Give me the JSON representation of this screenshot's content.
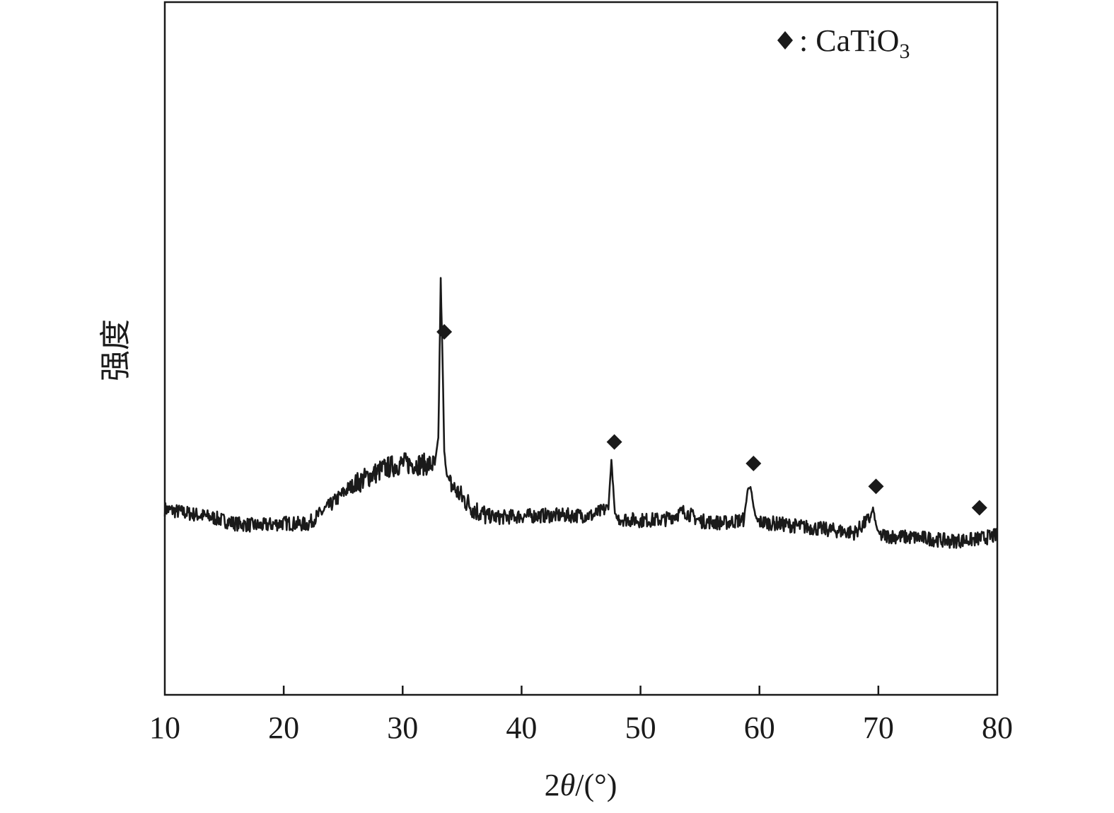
{
  "chart_data": {
    "type": "line",
    "xlabel_prefix": "2",
    "xlabel_symbol": "θ",
    "xlabel_suffix": "/(°)",
    "ylabel": "强度",
    "xlim": [
      10,
      80
    ],
    "ylim": [
      0,
      100
    ],
    "x_ticks": [
      10,
      20,
      30,
      40,
      50,
      60,
      70,
      80
    ],
    "grid": false,
    "legend": {
      "position": "top-right",
      "marker": "◆",
      "separator": ": ",
      "label_main": "CaTiO",
      "label_sub": "3"
    },
    "series": [
      {
        "color": "#1a1a1a",
        "x": [
          10.0,
          12.0,
          14.0,
          16.0,
          18.0,
          20.0,
          22.0,
          24.0,
          25.5,
          27.0,
          28.5,
          30.0,
          31.5,
          32.7,
          33.0,
          33.2,
          33.35,
          33.5,
          33.7,
          34.0,
          35.0,
          36.0,
          37.0,
          38.0,
          40.0,
          42.0,
          44.0,
          46.0,
          47.3,
          47.55,
          47.7,
          47.85,
          48.1,
          49.0,
          50.0,
          52.0,
          53.7,
          55.0,
          57.0,
          58.7,
          59.0,
          59.25,
          59.5,
          59.8,
          62.0,
          64.0,
          66.0,
          68.0,
          69.3,
          69.55,
          69.8,
          70.1,
          72.0,
          74.0,
          76.0,
          78.0,
          80.0
        ],
        "y": [
          26.8,
          26.2,
          25.6,
          24.7,
          24.4,
          24.8,
          24.6,
          27.5,
          29.9,
          31.4,
          32.7,
          33.4,
          33.3,
          33.2,
          37.0,
          60.0,
          48.6,
          35.0,
          32.0,
          30.5,
          28.5,
          26.8,
          25.9,
          25.6,
          25.8,
          25.9,
          25.9,
          25.9,
          27.0,
          33.9,
          30.0,
          26.0,
          25.5,
          25.3,
          25.2,
          25.3,
          26.5,
          25.1,
          24.8,
          25.3,
          29.5,
          30.2,
          27.0,
          25.0,
          24.6,
          24.2,
          23.8,
          23.4,
          25.5,
          26.9,
          24.5,
          23.0,
          22.8,
          22.6,
          22.2,
          22.4,
          23.0
        ]
      }
    ],
    "peak_markers": [
      {
        "x": 33.5,
        "y": 52.4
      },
      {
        "x": 47.8,
        "y": 36.5
      },
      {
        "x": 59.5,
        "y": 33.4
      },
      {
        "x": 69.8,
        "y": 30.1
      },
      {
        "x": 78.5,
        "y": 27.0
      }
    ]
  }
}
